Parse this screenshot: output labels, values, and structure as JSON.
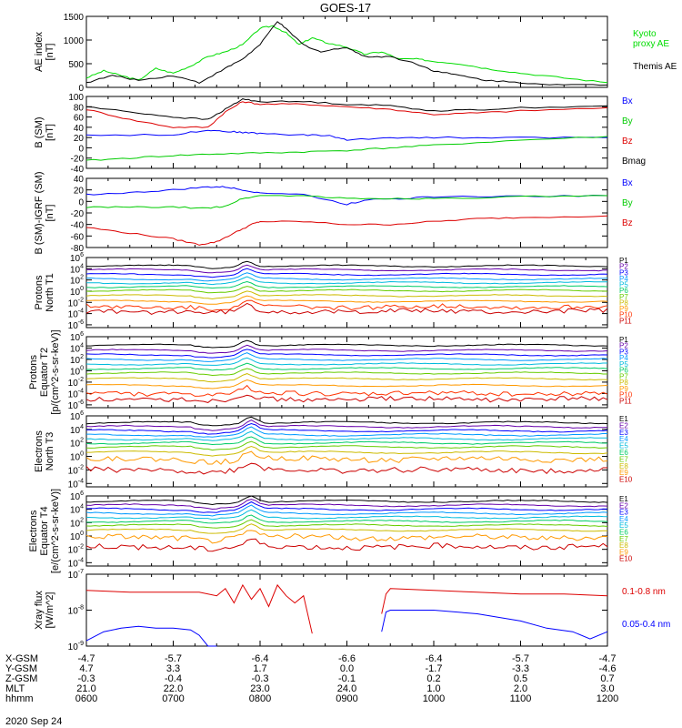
{
  "title": "GOES-17",
  "date_label": "2020 Sep 24",
  "ephemeris": {
    "rows": [
      {
        "label": "X-GSM",
        "values": [
          "-4.7",
          "-5.7",
          "-6.4",
          "-6.6",
          "-6.4",
          "-5.7",
          "-4.7"
        ]
      },
      {
        "label": "Y-GSM",
        "values": [
          "4.7",
          "3.3",
          "1.7",
          "0.0",
          "-1.7",
          "-3.3",
          "-4.6"
        ]
      },
      {
        "label": "Z-GSM",
        "values": [
          "-0.3",
          "-0.4",
          "-0.3",
          "-0.1",
          "0.2",
          "0.5",
          "0.7"
        ]
      },
      {
        "label": "MLT",
        "values": [
          "21.0",
          "22.0",
          "23.0",
          "24.0",
          "1.0",
          "2.0",
          "3.0"
        ]
      },
      {
        "label": "hhmm",
        "values": [
          "0600",
          "0700",
          "0800",
          "0900",
          "1000",
          "1100",
          "1200"
        ]
      }
    ]
  },
  "chart_data": [
    {
      "id": "ae",
      "type": "line",
      "ylabel": "AE index\n[nT]",
      "ylim": [
        0,
        1500
      ],
      "yticks": [
        "0",
        "500",
        "1000",
        "1500"
      ],
      "x_hours": [
        6,
        12
      ],
      "series": [
        {
          "name": "Kyoto\nproxy AE",
          "color": "#00dd00",
          "x": [
            6.0,
            6.2,
            6.4,
            6.6,
            6.8,
            7.0,
            7.2,
            7.4,
            7.6,
            7.8,
            8.0,
            8.15,
            8.3,
            8.45,
            8.6,
            8.75,
            9.0,
            9.2,
            9.4,
            9.6,
            9.8,
            10.0,
            10.3,
            10.6,
            11.0,
            11.5,
            12.0
          ],
          "y": [
            200,
            350,
            250,
            150,
            400,
            300,
            450,
            650,
            750,
            900,
            1250,
            1300,
            1150,
            900,
            1050,
            950,
            850,
            700,
            750,
            600,
            600,
            550,
            500,
            400,
            300,
            200,
            100
          ]
        },
        {
          "name": "Themis AE",
          "color": "#000000",
          "x": [
            6.0,
            6.3,
            6.6,
            7.0,
            7.3,
            7.6,
            7.8,
            8.0,
            8.2,
            8.35,
            8.5,
            8.7,
            9.0,
            9.2,
            9.5,
            9.8,
            10.0,
            10.3,
            10.6,
            11.0,
            11.5,
            12.0
          ],
          "y": [
            100,
            250,
            150,
            250,
            100,
            400,
            600,
            900,
            1400,
            1150,
            900,
            750,
            850,
            650,
            650,
            500,
            350,
            250,
            150,
            100,
            50,
            50
          ]
        }
      ]
    },
    {
      "id": "bsm",
      "type": "line",
      "ylabel": "B (SM)\n[nT]",
      "ylim": [
        -40,
        100
      ],
      "yticks": [
        "-40",
        "-20",
        "0",
        "20",
        "40",
        "60",
        "80",
        "100"
      ],
      "x_hours": [
        6,
        12
      ],
      "series": [
        {
          "name": "Bx",
          "color": "#0000ff",
          "x": [
            6.0,
            7.0,
            7.4,
            7.6,
            7.8,
            8.0,
            8.5,
            8.8,
            9.0,
            9.5,
            10.0,
            11.0,
            12.0
          ],
          "y": [
            25,
            25,
            35,
            32,
            30,
            28,
            25,
            24,
            15,
            20,
            20,
            20,
            20
          ]
        },
        {
          "name": "By",
          "color": "#00cc00",
          "x": [
            6.0,
            6.5,
            7.0,
            7.5,
            8.0,
            8.5,
            9.0,
            9.5,
            10.0,
            11.0,
            12.0
          ],
          "y": [
            -25,
            -20,
            -15,
            -12,
            -10,
            -8,
            -5,
            0,
            5,
            15,
            22
          ]
        },
        {
          "name": "Bz",
          "color": "#dd0000",
          "x": [
            6.0,
            6.5,
            7.0,
            7.4,
            7.6,
            7.8,
            8.0,
            8.5,
            9.0,
            9.5,
            10.0,
            10.5,
            11.0,
            12.0
          ],
          "y": [
            75,
            55,
            40,
            40,
            70,
            90,
            85,
            85,
            80,
            75,
            65,
            68,
            72,
            78
          ]
        },
        {
          "name": "Bmag",
          "color": "#000000",
          "x": [
            6.0,
            6.5,
            7.0,
            7.4,
            7.6,
            7.8,
            8.0,
            8.5,
            9.0,
            9.5,
            10.0,
            10.5,
            11.0,
            12.0
          ],
          "y": [
            80,
            70,
            60,
            55,
            75,
            95,
            90,
            90,
            85,
            82,
            72,
            74,
            78,
            82
          ]
        }
      ]
    },
    {
      "id": "bigrf",
      "type": "line",
      "ylabel": "B (SM)-IGRF (SM)\n[nT]",
      "ylim": [
        -80,
        40
      ],
      "yticks": [
        "-80",
        "-60",
        "-40",
        "-20",
        "0",
        "20",
        "40"
      ],
      "x_hours": [
        6,
        12
      ],
      "series": [
        {
          "name": "Bx",
          "color": "#0000ff",
          "x": [
            6.0,
            6.5,
            7.0,
            7.4,
            7.6,
            7.8,
            8.0,
            8.5,
            9.0,
            9.3,
            9.6,
            10.0,
            11.0,
            12.0
          ],
          "y": [
            12,
            15,
            20,
            25,
            25,
            20,
            15,
            12,
            -5,
            5,
            5,
            8,
            9,
            10
          ]
        },
        {
          "name": "By",
          "color": "#00cc00",
          "x": [
            6.0,
            6.5,
            7.0,
            7.4,
            7.6,
            7.8,
            8.0,
            8.5,
            9.0,
            9.5,
            10.0,
            11.0,
            12.0
          ],
          "y": [
            -10,
            -10,
            -10,
            -12,
            -8,
            5,
            10,
            10,
            5,
            5,
            5,
            8,
            10
          ]
        },
        {
          "name": "Bz",
          "color": "#dd0000",
          "x": [
            6.0,
            6.5,
            7.0,
            7.3,
            7.5,
            7.7,
            7.9,
            8.0,
            8.5,
            9.0,
            9.5,
            10.0,
            10.5,
            11.0,
            12.0
          ],
          "y": [
            -45,
            -55,
            -65,
            -75,
            -70,
            -55,
            -40,
            -35,
            -35,
            -40,
            -40,
            -35,
            -30,
            -28,
            -25
          ]
        }
      ]
    },
    {
      "id": "protons_t1",
      "type": "line",
      "ylabel": "Protons\nNorth T1",
      "log": true,
      "ylim_exp": [
        -6.5,
        6
      ],
      "yticks_exp": [
        -6,
        -4,
        -2,
        0,
        2,
        4,
        6
      ],
      "x_hours": [
        6,
        12
      ],
      "series_names": [
        "P1",
        "P2",
        "P3",
        "P4",
        "P5",
        "P6",
        "P7",
        "P8",
        "P9",
        "P10",
        "P11"
      ],
      "series_colors": [
        "#000000",
        "#6600aa",
        "#0000ff",
        "#0099ff",
        "#00bbdd",
        "#00cc66",
        "#66cc00",
        "#ccbb00",
        "#ff9900",
        "#ff3300",
        "#cc0000"
      ],
      "levels_exp": [
        4.5,
        3.8,
        3.0,
        2.2,
        1.5,
        0.8,
        0.1,
        -0.8,
        -1.8,
        -2.8,
        -3.6
      ],
      "spike_at": 7.85
    },
    {
      "id": "protons_t2",
      "type": "line",
      "ylabel": "Protons\nEquator T2\n[p/(cm^2-s-sr-keV)]",
      "log": true,
      "ylim_exp": [
        -6.5,
        6
      ],
      "yticks_exp": [
        -6,
        -4,
        -2,
        0,
        2,
        4,
        6
      ],
      "x_hours": [
        6,
        12
      ],
      "series_names": [
        "P1",
        "P2",
        "P3",
        "P4",
        "P5",
        "P6",
        "P7",
        "P8",
        "P9",
        "P10",
        "P11"
      ],
      "series_colors": [
        "#000000",
        "#6600aa",
        "#0000ff",
        "#0099ff",
        "#00bbdd",
        "#00cc66",
        "#66cc00",
        "#ccbb00",
        "#ff9900",
        "#ff3300",
        "#cc0000"
      ],
      "levels_exp": [
        4.5,
        3.6,
        2.8,
        2.0,
        1.2,
        0.4,
        -0.4,
        -1.4,
        -2.6,
        -4.0,
        -5.0
      ],
      "spike_at": 7.85
    },
    {
      "id": "electrons_t3",
      "type": "line",
      "ylabel": "Electrons\nNorth T3",
      "log": true,
      "ylim_exp": [
        -4.5,
        6
      ],
      "yticks_exp": [
        -4,
        -2,
        0,
        2,
        4,
        6
      ],
      "x_hours": [
        6,
        12
      ],
      "series_names": [
        "E1",
        "E2",
        "E3",
        "E4",
        "E5",
        "E6",
        "E7",
        "E8",
        "E9",
        "E10"
      ],
      "series_colors": [
        "#000000",
        "#6600aa",
        "#0000ff",
        "#0099ff",
        "#00bbdd",
        "#00cc66",
        "#66cc00",
        "#ccbb00",
        "#ff9900",
        "#cc0000"
      ],
      "levels_exp": [
        5.0,
        4.4,
        3.8,
        3.2,
        2.6,
        2.0,
        1.4,
        0.6,
        -0.4,
        -2.0
      ],
      "spike_at": 7.9
    },
    {
      "id": "electrons_t4",
      "type": "line",
      "ylabel": "Electrons\nEquator T4\n[e/(cm^2-s-sr-keV)]",
      "log": true,
      "ylim_exp": [
        -4.5,
        6
      ],
      "yticks_exp": [
        -4,
        -2,
        0,
        2,
        4,
        6
      ],
      "x_hours": [
        6,
        12
      ],
      "series_names": [
        "E1",
        "E2",
        "E3",
        "E4",
        "E5",
        "E6",
        "E7",
        "E8",
        "E9",
        "E10"
      ],
      "series_colors": [
        "#000000",
        "#6600aa",
        "#0000ff",
        "#0099ff",
        "#00bbdd",
        "#00cc66",
        "#66cc00",
        "#ccbb00",
        "#ff9900",
        "#cc0000"
      ],
      "levels_exp": [
        5.2,
        4.6,
        4.0,
        3.4,
        2.8,
        2.2,
        1.6,
        0.9,
        -0.2,
        -1.6
      ],
      "spike_at": 7.9
    },
    {
      "id": "xray",
      "type": "line",
      "ylabel": "Xray flux\n[W/m^2]",
      "log": true,
      "ylim_exp": [
        -9,
        -7
      ],
      "yticks_exp": [
        -9,
        -8,
        -7
      ],
      "x_hours": [
        6,
        12
      ],
      "series": [
        {
          "name": "0.1-0.8 nm",
          "color": "#dd0000",
          "segments": [
            {
              "x": [
                6.0,
                6.5,
                7.0,
                7.3,
                7.5,
                7.6,
                7.7,
                7.8,
                7.9,
                8.0,
                8.1,
                8.2,
                8.3,
                8.4,
                8.5,
                8.6
              ],
              "y": [
                -7.45,
                -7.5,
                -7.5,
                -7.5,
                -7.6,
                -7.4,
                -7.8,
                -7.3,
                -7.7,
                -7.4,
                -7.9,
                -7.3,
                -7.6,
                -7.8,
                -7.6,
                -8.65
              ]
            },
            {
              "x": [
                9.4,
                9.45,
                9.5,
                10.0,
                10.5,
                11.0,
                11.5,
                12.0
              ],
              "y": [
                -8.1,
                -7.55,
                -7.4,
                -7.45,
                -7.5,
                -7.55,
                -7.55,
                -7.6
              ]
            }
          ]
        },
        {
          "name": "0.05-0.4 nm",
          "color": "#0000ff",
          "segments": [
            {
              "x": [
                6.0,
                6.2,
                6.4,
                6.6,
                6.8,
                7.0,
                7.2,
                7.3,
                7.4,
                7.5
              ],
              "y": [
                -8.85,
                -8.6,
                -8.5,
                -8.45,
                -8.5,
                -8.5,
                -8.55,
                -8.7,
                -9.0,
                -9.0
              ]
            },
            {
              "x": [
                9.4,
                9.45,
                9.5,
                10.0,
                10.5,
                11.0,
                11.3,
                11.6,
                11.8,
                12.0
              ],
              "y": [
                -8.6,
                -8.05,
                -8.0,
                -8.0,
                -8.1,
                -8.3,
                -8.5,
                -8.6,
                -8.8,
                -8.6
              ]
            }
          ]
        }
      ]
    }
  ]
}
